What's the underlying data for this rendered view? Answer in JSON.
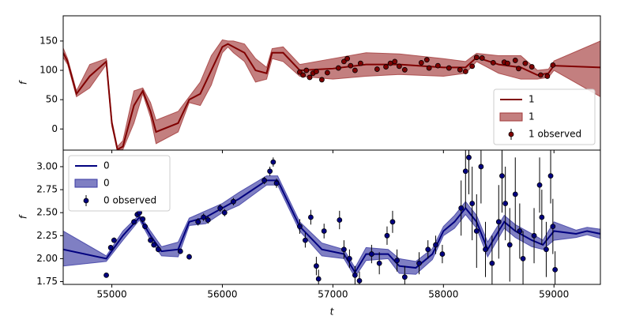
{
  "chart_data": [
    {
      "type": "line",
      "ylabel": "f",
      "xlim": [
        54560,
        59420
      ],
      "ylim": [
        -36,
        193
      ],
      "yticks": [
        0,
        50,
        100,
        150
      ],
      "legend": "lower right",
      "series": [
        {
          "kind": "line",
          "name": "1",
          "color": "#800000",
          "x": [
            54560,
            54600,
            54680,
            54800,
            54950,
            55000,
            55050,
            55100,
            55200,
            55280,
            55350,
            55400,
            55600,
            55700,
            55800,
            55900,
            56000,
            56050,
            56100,
            56200,
            56300,
            56400,
            56450,
            56550,
            56700,
            57000,
            57300,
            57600,
            58000,
            58200,
            58300,
            58500,
            58700,
            58850,
            58950,
            59000,
            59420
          ],
          "values": [
            130,
            115,
            60,
            90,
            115,
            10,
            -35,
            -30,
            40,
            65,
            30,
            -5,
            10,
            50,
            60,
            100,
            140,
            145,
            140,
            130,
            100,
            95,
            130,
            130,
            100,
            103,
            110,
            110,
            105,
            105,
            122,
            110,
            105,
            92,
            95,
            108,
            105
          ]
        },
        {
          "kind": "band",
          "name": "1",
          "color": "#a33a3a",
          "x": [
            54560,
            54600,
            54680,
            54800,
            54950,
            55000,
            55050,
            55100,
            55200,
            55280,
            55350,
            55400,
            55600,
            55700,
            55800,
            55900,
            56000,
            56050,
            56100,
            56200,
            56300,
            56400,
            56450,
            56550,
            56700,
            57000,
            57300,
            57600,
            58000,
            58200,
            58300,
            58500,
            58700,
            58850,
            58950,
            59000,
            59420
          ],
          "lower": [
            122,
            110,
            55,
            70,
            110,
            5,
            -36,
            -35,
            10,
            60,
            20,
            -25,
            -5,
            45,
            40,
            75,
            130,
            140,
            130,
            115,
            80,
            85,
            120,
            115,
            90,
            85,
            90,
            93,
            90,
            95,
            115,
            95,
            85,
            85,
            88,
            100,
            55
          ],
          "upper": [
            138,
            120,
            65,
            110,
            120,
            15,
            -30,
            -20,
            65,
            70,
            45,
            15,
            30,
            55,
            80,
            125,
            152,
            150,
            150,
            145,
            120,
            105,
            137,
            140,
            110,
            120,
            130,
            128,
            120,
            115,
            129,
            125,
            125,
            100,
            102,
            116,
            150
          ]
        },
        {
          "kind": "observed",
          "name": "1 observed",
          "color": "#800000",
          "x": [
            56700,
            56730,
            56760,
            56790,
            56820,
            56850,
            56900,
            56950,
            57050,
            57100,
            57130,
            57160,
            57200,
            57250,
            57400,
            57480,
            57520,
            57560,
            57600,
            57650,
            57800,
            57850,
            57870,
            57950,
            58050,
            58150,
            58200,
            58260,
            58300,
            58350,
            58450,
            58550,
            58580,
            58650,
            58680,
            58740,
            58800,
            58880,
            58940,
            58990
          ],
          "values": [
            97,
            92,
            100,
            88,
            95,
            98,
            84,
            96,
            104,
            115,
            120,
            108,
            100,
            112,
            102,
            106,
            112,
            115,
            107,
            101,
            113,
            118,
            104,
            108,
            104,
            101,
            98,
            107,
            122,
            121,
            113,
            114,
            112,
            117,
            103,
            112,
            106,
            92,
            90,
            109
          ],
          "errors": [
            4,
            4,
            4,
            4,
            4,
            4,
            4,
            4,
            4,
            4,
            4,
            4,
            4,
            4,
            4,
            4,
            4,
            4,
            4,
            4,
            4,
            4,
            4,
            4,
            4,
            4,
            4,
            4,
            4,
            4,
            4,
            4,
            4,
            4,
            4,
            4,
            4,
            4,
            4,
            4
          ]
        }
      ]
    },
    {
      "type": "line",
      "ylabel": "f",
      "xlabel": "t",
      "xlim": [
        54560,
        59420
      ],
      "ylim": [
        1.72,
        3.18
      ],
      "xticks": [
        55000,
        56000,
        57000,
        58000,
        59000
      ],
      "yticks": [
        1.75,
        {
          "value": 2,
          "label": "2.00"
        },
        2.25,
        {
          "value": 2.5,
          "label": "2.50"
        },
        2.75,
        {
          "value": 3,
          "label": "3.00"
        }
      ],
      "legend": "upper left",
      "series": [
        {
          "kind": "line",
          "name": "0",
          "color": "#00007f",
          "x": [
            54560,
            54950,
            55100,
            55250,
            55350,
            55450,
            55600,
            55700,
            55850,
            56000,
            56150,
            56400,
            56500,
            56700,
            56900,
            57100,
            57200,
            57300,
            57500,
            57600,
            57750,
            57900,
            58000,
            58100,
            58200,
            58300,
            58400,
            58550,
            58650,
            58800,
            58900,
            59000,
            59200,
            59300,
            59420
          ],
          "values": [
            2.1,
            2.0,
            2.25,
            2.45,
            2.25,
            2.08,
            2.1,
            2.4,
            2.45,
            2.55,
            2.65,
            2.85,
            2.85,
            2.35,
            2.1,
            2.05,
            1.85,
            2.05,
            2.05,
            1.92,
            1.9,
            2.05,
            2.3,
            2.4,
            2.55,
            2.4,
            2.1,
            2.4,
            2.3,
            2.2,
            2.15,
            2.3,
            2.27,
            2.3,
            2.27
          ]
        },
        {
          "kind": "band",
          "name": "0",
          "color": "#3a3aa3",
          "x": [
            54560,
            54950,
            55100,
            55250,
            55350,
            55450,
            55600,
            55700,
            55850,
            56000,
            56150,
            56400,
            56500,
            56700,
            56900,
            57100,
            57200,
            57300,
            57500,
            57600,
            57750,
            57900,
            58000,
            58100,
            58200,
            58300,
            58400,
            58550,
            58650,
            58800,
            58900,
            59000,
            59200,
            59300,
            59420
          ],
          "lower": [
            1.92,
            1.97,
            2.2,
            2.42,
            2.2,
            2.03,
            2.02,
            2.36,
            2.38,
            2.5,
            2.58,
            2.8,
            2.8,
            2.3,
            2.03,
            2.0,
            1.8,
            1.98,
            2.0,
            1.84,
            1.83,
            1.99,
            2.25,
            2.33,
            2.48,
            2.33,
            2.02,
            2.33,
            2.23,
            2.13,
            2.1,
            2.2,
            2.23,
            2.26,
            2.22
          ],
          "upper": [
            2.3,
            2.03,
            2.3,
            2.48,
            2.3,
            2.13,
            2.18,
            2.44,
            2.52,
            2.6,
            2.72,
            2.9,
            2.9,
            2.4,
            2.17,
            2.1,
            1.9,
            2.12,
            2.1,
            2.0,
            1.97,
            2.11,
            2.35,
            2.47,
            2.62,
            2.47,
            2.18,
            2.47,
            2.37,
            2.27,
            2.2,
            2.4,
            2.31,
            2.34,
            2.32
          ]
        },
        {
          "kind": "observed",
          "name": "0 observed",
          "color": "#00007f",
          "x": [
            54950,
            54990,
            55020,
            55200,
            55230,
            55250,
            55280,
            55300,
            55350,
            55380,
            55420,
            55620,
            55700,
            55780,
            55830,
            55870,
            55980,
            56020,
            56100,
            56380,
            56430,
            56460,
            56490,
            56700,
            56750,
            56800,
            56850,
            56870,
            56920,
            57060,
            57100,
            57150,
            57200,
            57240,
            57350,
            57420,
            57490,
            57540,
            57580,
            57650,
            57780,
            57860,
            57930,
            57990,
            58160,
            58200,
            58230,
            58260,
            58300,
            58340,
            58380,
            58440,
            58500,
            58530,
            58560,
            58600,
            58650,
            58690,
            58720,
            58820,
            58870,
            58890,
            58930,
            58970,
            58990,
            59010
          ],
          "values": [
            1.82,
            2.12,
            2.2,
            2.4,
            2.48,
            2.5,
            2.43,
            2.35,
            2.2,
            2.15,
            2.1,
            2.08,
            2.02,
            2.4,
            2.45,
            2.42,
            2.55,
            2.5,
            2.62,
            2.85,
            2.95,
            3.05,
            2.82,
            2.35,
            2.2,
            2.45,
            1.92,
            1.78,
            2.3,
            2.42,
            2.1,
            2.0,
            1.82,
            1.76,
            2.05,
            1.95,
            2.25,
            2.4,
            1.98,
            1.8,
            1.95,
            2.1,
            2.15,
            2.05,
            2.55,
            2.95,
            3.1,
            2.6,
            2.3,
            3.0,
            2.1,
            1.95,
            2.4,
            2.9,
            2.6,
            2.15,
            2.7,
            2.3,
            2.0,
            2.25,
            2.8,
            2.45,
            2.1,
            2.9,
            2.35,
            1.88
          ],
          "errors": [
            0.02,
            0.03,
            0.03,
            0.03,
            0.03,
            0.03,
            0.03,
            0.03,
            0.03,
            0.03,
            0.03,
            0.03,
            0.03,
            0.04,
            0.04,
            0.04,
            0.04,
            0.04,
            0.04,
            0.04,
            0.05,
            0.05,
            0.05,
            0.08,
            0.08,
            0.08,
            0.1,
            0.1,
            0.08,
            0.1,
            0.1,
            0.1,
            0.1,
            0.1,
            0.1,
            0.12,
            0.1,
            0.12,
            0.12,
            0.12,
            0.12,
            0.1,
            0.1,
            0.1,
            0.3,
            0.4,
            0.4,
            0.4,
            0.4,
            0.4,
            0.3,
            0.3,
            0.4,
            0.4,
            0.4,
            0.4,
            0.4,
            0.3,
            0.3,
            0.3,
            0.3,
            0.3,
            0.3,
            0.3,
            0.3,
            0.2
          ]
        }
      ]
    }
  ]
}
